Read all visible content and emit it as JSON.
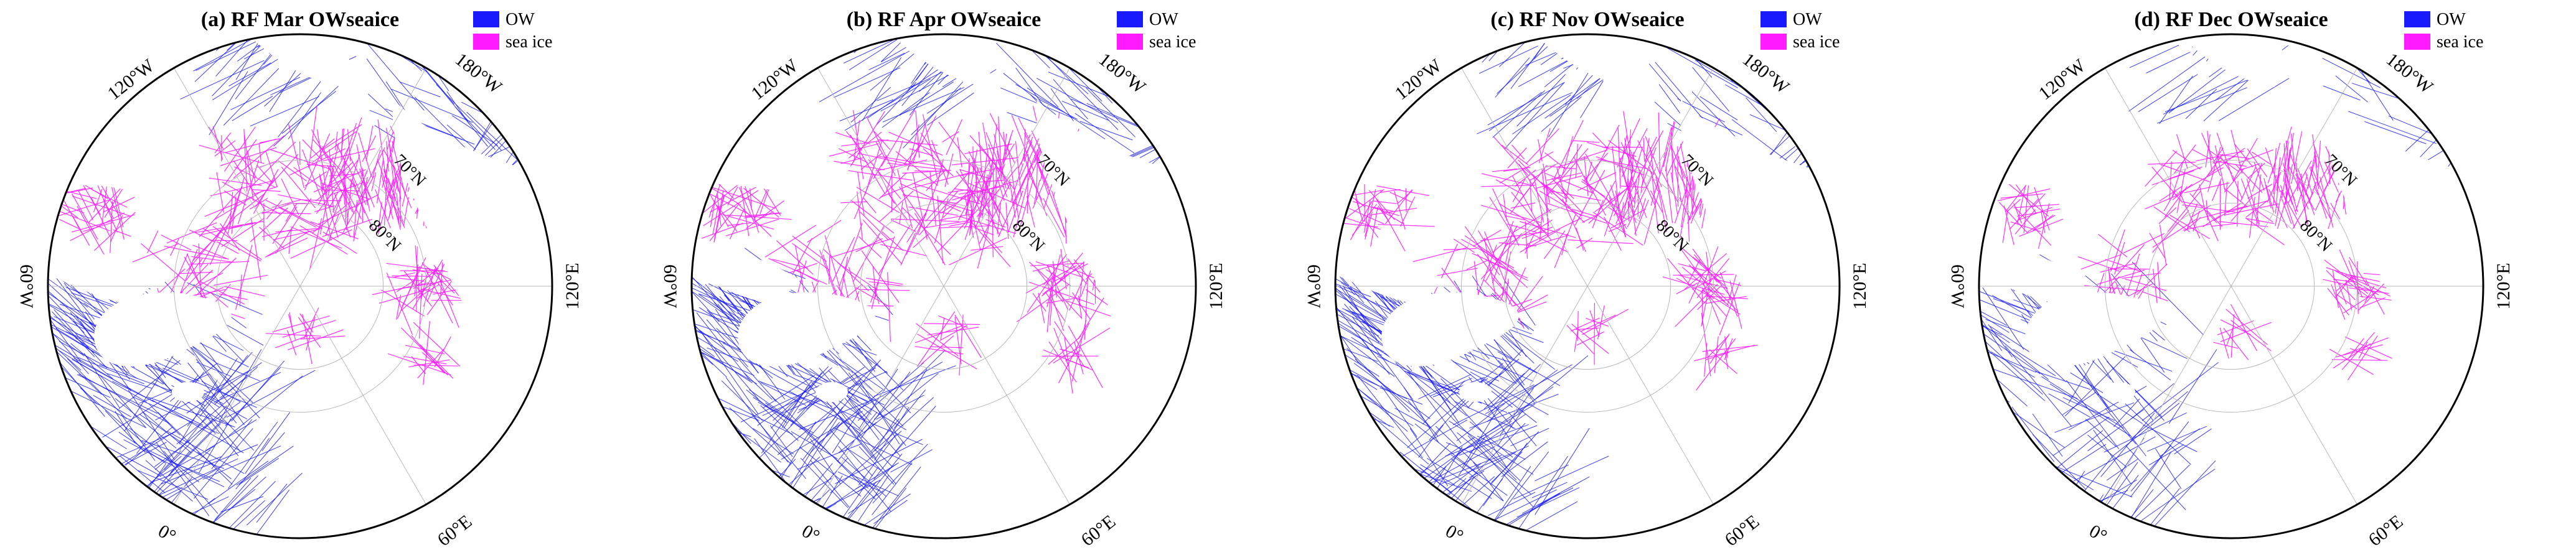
{
  "legend": [
    {
      "label": "OW",
      "color": "#1a1aff"
    },
    {
      "label": "sea ice",
      "color": "#ff1aff"
    }
  ],
  "colors": {
    "ow": "#1a1aff",
    "sea_ice": "#ff1aff",
    "land": "#ffffff",
    "grid": "#b8b8b8",
    "outline": "#000000"
  },
  "projection": "north polar stereographic",
  "longitude_labels": [
    "120°W",
    "180°W",
    "120°E",
    "60°E",
    "0°",
    "60°W"
  ],
  "latitude_labels": [
    "70°N",
    "80°N"
  ],
  "panels": [
    {
      "title": "(a) RF Mar OWseaice",
      "month": "Mar",
      "ow_density": 1.0,
      "ice_extent": 1.0
    },
    {
      "title": "(b) RF Apr OWseaice",
      "month": "Apr",
      "ow_density": 1.1,
      "ice_extent": 1.05
    },
    {
      "title": "(c) RF Nov OWseaice",
      "month": "Nov",
      "ow_density": 1.0,
      "ice_extent": 0.95
    },
    {
      "title": "(d) RF Dec OWseaice",
      "month": "Dec",
      "ow_density": 0.55,
      "ice_extent": 0.75
    }
  ]
}
